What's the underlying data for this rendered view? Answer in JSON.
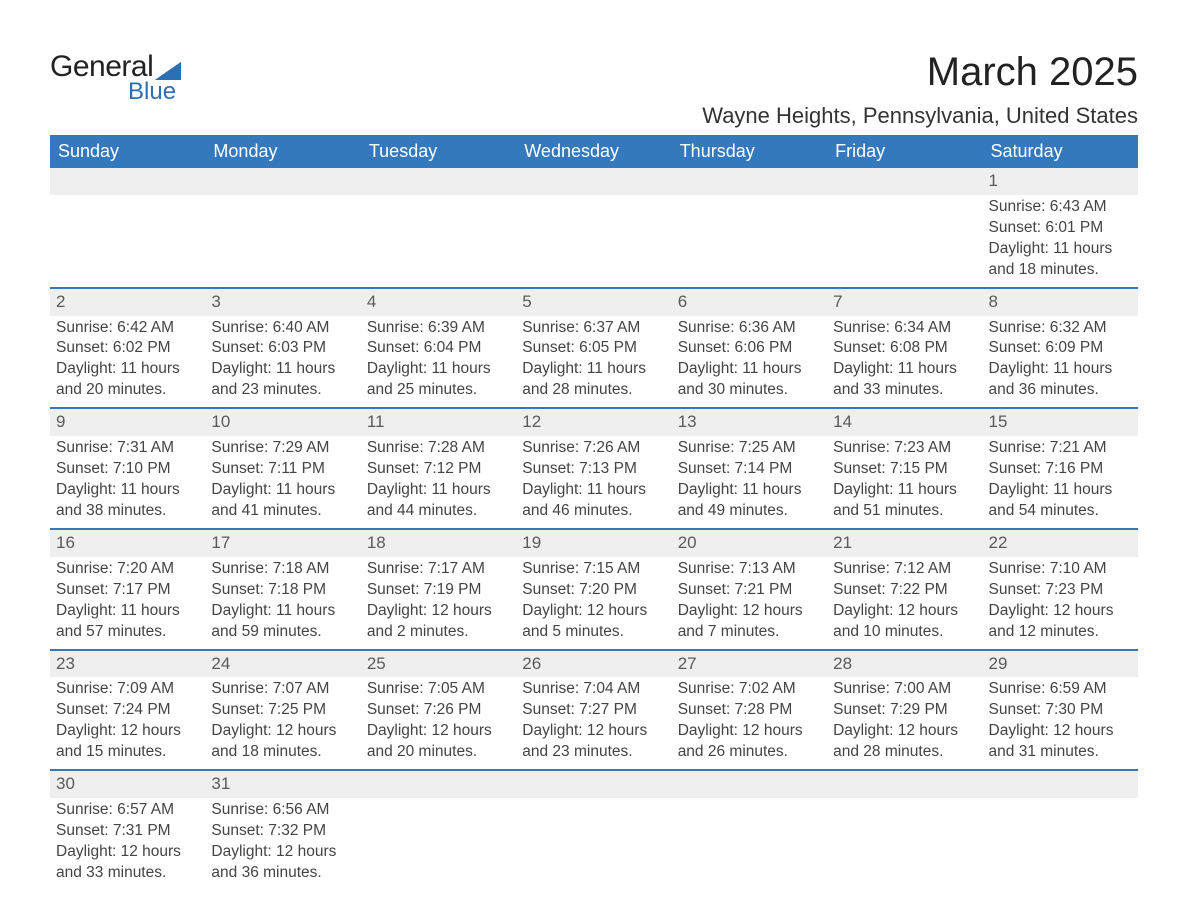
{
  "logo": {
    "line1": "General",
    "line2": "Blue"
  },
  "title": "March 2025",
  "location": "Wayne Heights, Pennsylvania, United States",
  "colors": {
    "header_bg": "#3478bd",
    "header_text": "#ffffff",
    "daynum_bg": "#efefef",
    "daynum_text": "#5a5a5a",
    "body_text": "#444444",
    "logo_accent": "#2d6fb5"
  },
  "weekdays": [
    "Sunday",
    "Monday",
    "Tuesday",
    "Wednesday",
    "Thursday",
    "Friday",
    "Saturday"
  ],
  "weeks": [
    [
      null,
      null,
      null,
      null,
      null,
      null,
      {
        "day": "1",
        "sunrise": "Sunrise: 6:43 AM",
        "sunset": "Sunset: 6:01 PM",
        "daylight1": "Daylight: 11 hours",
        "daylight2": "and 18 minutes."
      }
    ],
    [
      {
        "day": "2",
        "sunrise": "Sunrise: 6:42 AM",
        "sunset": "Sunset: 6:02 PM",
        "daylight1": "Daylight: 11 hours",
        "daylight2": "and 20 minutes."
      },
      {
        "day": "3",
        "sunrise": "Sunrise: 6:40 AM",
        "sunset": "Sunset: 6:03 PM",
        "daylight1": "Daylight: 11 hours",
        "daylight2": "and 23 minutes."
      },
      {
        "day": "4",
        "sunrise": "Sunrise: 6:39 AM",
        "sunset": "Sunset: 6:04 PM",
        "daylight1": "Daylight: 11 hours",
        "daylight2": "and 25 minutes."
      },
      {
        "day": "5",
        "sunrise": "Sunrise: 6:37 AM",
        "sunset": "Sunset: 6:05 PM",
        "daylight1": "Daylight: 11 hours",
        "daylight2": "and 28 minutes."
      },
      {
        "day": "6",
        "sunrise": "Sunrise: 6:36 AM",
        "sunset": "Sunset: 6:06 PM",
        "daylight1": "Daylight: 11 hours",
        "daylight2": "and 30 minutes."
      },
      {
        "day": "7",
        "sunrise": "Sunrise: 6:34 AM",
        "sunset": "Sunset: 6:08 PM",
        "daylight1": "Daylight: 11 hours",
        "daylight2": "and 33 minutes."
      },
      {
        "day": "8",
        "sunrise": "Sunrise: 6:32 AM",
        "sunset": "Sunset: 6:09 PM",
        "daylight1": "Daylight: 11 hours",
        "daylight2": "and 36 minutes."
      }
    ],
    [
      {
        "day": "9",
        "sunrise": "Sunrise: 7:31 AM",
        "sunset": "Sunset: 7:10 PM",
        "daylight1": "Daylight: 11 hours",
        "daylight2": "and 38 minutes."
      },
      {
        "day": "10",
        "sunrise": "Sunrise: 7:29 AM",
        "sunset": "Sunset: 7:11 PM",
        "daylight1": "Daylight: 11 hours",
        "daylight2": "and 41 minutes."
      },
      {
        "day": "11",
        "sunrise": "Sunrise: 7:28 AM",
        "sunset": "Sunset: 7:12 PM",
        "daylight1": "Daylight: 11 hours",
        "daylight2": "and 44 minutes."
      },
      {
        "day": "12",
        "sunrise": "Sunrise: 7:26 AM",
        "sunset": "Sunset: 7:13 PM",
        "daylight1": "Daylight: 11 hours",
        "daylight2": "and 46 minutes."
      },
      {
        "day": "13",
        "sunrise": "Sunrise: 7:25 AM",
        "sunset": "Sunset: 7:14 PM",
        "daylight1": "Daylight: 11 hours",
        "daylight2": "and 49 minutes."
      },
      {
        "day": "14",
        "sunrise": "Sunrise: 7:23 AM",
        "sunset": "Sunset: 7:15 PM",
        "daylight1": "Daylight: 11 hours",
        "daylight2": "and 51 minutes."
      },
      {
        "day": "15",
        "sunrise": "Sunrise: 7:21 AM",
        "sunset": "Sunset: 7:16 PM",
        "daylight1": "Daylight: 11 hours",
        "daylight2": "and 54 minutes."
      }
    ],
    [
      {
        "day": "16",
        "sunrise": "Sunrise: 7:20 AM",
        "sunset": "Sunset: 7:17 PM",
        "daylight1": "Daylight: 11 hours",
        "daylight2": "and 57 minutes."
      },
      {
        "day": "17",
        "sunrise": "Sunrise: 7:18 AM",
        "sunset": "Sunset: 7:18 PM",
        "daylight1": "Daylight: 11 hours",
        "daylight2": "and 59 minutes."
      },
      {
        "day": "18",
        "sunrise": "Sunrise: 7:17 AM",
        "sunset": "Sunset: 7:19 PM",
        "daylight1": "Daylight: 12 hours",
        "daylight2": "and 2 minutes."
      },
      {
        "day": "19",
        "sunrise": "Sunrise: 7:15 AM",
        "sunset": "Sunset: 7:20 PM",
        "daylight1": "Daylight: 12 hours",
        "daylight2": "and 5 minutes."
      },
      {
        "day": "20",
        "sunrise": "Sunrise: 7:13 AM",
        "sunset": "Sunset: 7:21 PM",
        "daylight1": "Daylight: 12 hours",
        "daylight2": "and 7 minutes."
      },
      {
        "day": "21",
        "sunrise": "Sunrise: 7:12 AM",
        "sunset": "Sunset: 7:22 PM",
        "daylight1": "Daylight: 12 hours",
        "daylight2": "and 10 minutes."
      },
      {
        "day": "22",
        "sunrise": "Sunrise: 7:10 AM",
        "sunset": "Sunset: 7:23 PM",
        "daylight1": "Daylight: 12 hours",
        "daylight2": "and 12 minutes."
      }
    ],
    [
      {
        "day": "23",
        "sunrise": "Sunrise: 7:09 AM",
        "sunset": "Sunset: 7:24 PM",
        "daylight1": "Daylight: 12 hours",
        "daylight2": "and 15 minutes."
      },
      {
        "day": "24",
        "sunrise": "Sunrise: 7:07 AM",
        "sunset": "Sunset: 7:25 PM",
        "daylight1": "Daylight: 12 hours",
        "daylight2": "and 18 minutes."
      },
      {
        "day": "25",
        "sunrise": "Sunrise: 7:05 AM",
        "sunset": "Sunset: 7:26 PM",
        "daylight1": "Daylight: 12 hours",
        "daylight2": "and 20 minutes."
      },
      {
        "day": "26",
        "sunrise": "Sunrise: 7:04 AM",
        "sunset": "Sunset: 7:27 PM",
        "daylight1": "Daylight: 12 hours",
        "daylight2": "and 23 minutes."
      },
      {
        "day": "27",
        "sunrise": "Sunrise: 7:02 AM",
        "sunset": "Sunset: 7:28 PM",
        "daylight1": "Daylight: 12 hours",
        "daylight2": "and 26 minutes."
      },
      {
        "day": "28",
        "sunrise": "Sunrise: 7:00 AM",
        "sunset": "Sunset: 7:29 PM",
        "daylight1": "Daylight: 12 hours",
        "daylight2": "and 28 minutes."
      },
      {
        "day": "29",
        "sunrise": "Sunrise: 6:59 AM",
        "sunset": "Sunset: 7:30 PM",
        "daylight1": "Daylight: 12 hours",
        "daylight2": "and 31 minutes."
      }
    ],
    [
      {
        "day": "30",
        "sunrise": "Sunrise: 6:57 AM",
        "sunset": "Sunset: 7:31 PM",
        "daylight1": "Daylight: 12 hours",
        "daylight2": "and 33 minutes."
      },
      {
        "day": "31",
        "sunrise": "Sunrise: 6:56 AM",
        "sunset": "Sunset: 7:32 PM",
        "daylight1": "Daylight: 12 hours",
        "daylight2": "and 36 minutes."
      },
      null,
      null,
      null,
      null,
      null
    ]
  ]
}
